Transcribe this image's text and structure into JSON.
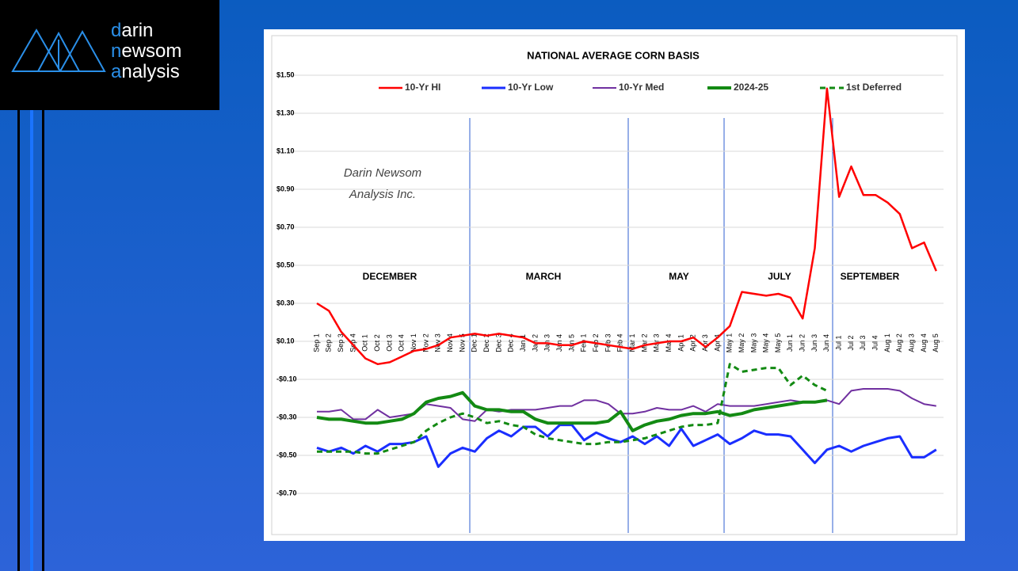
{
  "logo": [
    "darin",
    "newsom",
    "analysis"
  ],
  "chart_data": {
    "type": "line",
    "title": "NATIONAL AVERAGE CORN BASIS",
    "annotations": [
      "DECEMBER",
      "MARCH",
      "MAY",
      "JULY",
      "SEPTEMBER"
    ],
    "watermark": [
      "Darin Newsom",
      "Analysis Inc."
    ],
    "categories": [
      "Sep 1",
      "Sep 2",
      "Sep 3",
      "Sep 4",
      "Oct 1",
      "Oct 2",
      "Oct 3",
      "Oct 4",
      "Nov 1",
      "Nov 2",
      "Nov 3",
      "Nov 4",
      "Nov 5",
      "Dec 1",
      "Dec 2",
      "Dec 3",
      "Dec 4",
      "Jan 1",
      "Jan 2",
      "Jan 3",
      "Jan 4",
      "Jan 5",
      "Feb 1",
      "Feb 2",
      "Feb 3",
      "Feb 4",
      "Mar 1",
      "Mar 2",
      "Mar 3",
      "Mar 4",
      "Apr 1",
      "Apr 2",
      "Apr 3",
      "Apr 4",
      "May 1",
      "May 2",
      "May 3",
      "May 4",
      "May 5",
      "Jun 1",
      "Jun 2",
      "Jun 3",
      "Jun 4",
      "Jul 1",
      "Jul 2",
      "Jul 3",
      "Jul 4",
      "Aug 1",
      "Aug 2",
      "Aug 3",
      "Aug 4",
      "Aug 5"
    ],
    "ylim": [
      -0.9,
      1.5
    ],
    "yticks": [
      {
        "value": 1.5,
        "label": "$1.50"
      },
      {
        "value": 1.3,
        "label": "$1.30"
      },
      {
        "value": 1.1,
        "label": "$1.10"
      },
      {
        "value": 0.9,
        "label": "$0.90"
      },
      {
        "value": 0.7,
        "label": "$0.70"
      },
      {
        "value": 0.5,
        "label": "$0.50"
      },
      {
        "value": 0.3,
        "label": "$0.30"
      },
      {
        "value": 0.1,
        "label": "$0.10"
      },
      {
        "value": -0.1,
        "label": "-$0.10"
      },
      {
        "value": -0.3,
        "label": "-$0.30"
      },
      {
        "value": -0.5,
        "label": "-$0.50"
      },
      {
        "value": -0.7,
        "label": "-$0.70"
      }
    ],
    "grid": true,
    "series": [
      {
        "name": "10-Yr HI",
        "color": "#ff0000",
        "values": [
          0.3,
          0.26,
          0.15,
          0.08,
          0.01,
          -0.02,
          -0.01,
          0.02,
          0.05,
          0.06,
          0.08,
          0.12,
          0.13,
          0.14,
          0.13,
          0.14,
          0.13,
          0.12,
          0.09,
          0.09,
          0.08,
          0.08,
          0.1,
          0.09,
          0.08,
          0.07,
          0.06,
          0.08,
          0.09,
          0.1,
          0.1,
          0.12,
          0.07,
          0.12,
          0.18,
          0.36,
          0.35,
          0.34,
          0.35,
          0.33,
          0.22,
          0.59,
          1.43,
          0.86,
          1.02,
          0.87,
          0.87,
          0.83,
          0.77,
          0.59,
          0.62,
          0.47
        ]
      },
      {
        "name": "10-Yr Low",
        "color": "#1a2eff",
        "values": [
          -0.46,
          -0.48,
          -0.46,
          -0.49,
          -0.45,
          -0.48,
          -0.44,
          -0.44,
          -0.43,
          -0.4,
          -0.56,
          -0.49,
          -0.46,
          -0.48,
          -0.41,
          -0.37,
          -0.4,
          -0.35,
          -0.35,
          -0.4,
          -0.34,
          -0.34,
          -0.42,
          -0.38,
          -0.41,
          -0.43,
          -0.4,
          -0.44,
          -0.4,
          -0.45,
          -0.36,
          -0.45,
          -0.42,
          -0.39,
          -0.44,
          -0.41,
          -0.37,
          -0.39,
          -0.39,
          -0.4,
          -0.47,
          -0.54,
          -0.47,
          -0.45,
          -0.48,
          -0.45,
          -0.43,
          -0.41,
          -0.4,
          -0.51,
          -0.51,
          -0.47
        ]
      },
      {
        "name": "10-Yr Med",
        "color": "#7030a0",
        "values": [
          -0.27,
          -0.27,
          -0.26,
          -0.31,
          -0.31,
          -0.26,
          -0.3,
          -0.29,
          -0.28,
          -0.23,
          -0.24,
          -0.25,
          -0.31,
          -0.32,
          -0.26,
          -0.27,
          -0.26,
          -0.26,
          -0.26,
          -0.25,
          -0.24,
          -0.24,
          -0.21,
          -0.21,
          -0.23,
          -0.28,
          -0.28,
          -0.27,
          -0.25,
          -0.26,
          -0.26,
          -0.24,
          -0.27,
          -0.23,
          -0.24,
          -0.24,
          -0.24,
          -0.23,
          -0.22,
          -0.21,
          -0.22,
          -0.22,
          -0.21,
          -0.23,
          -0.16,
          -0.15,
          -0.15,
          -0.15,
          -0.16,
          -0.2,
          -0.23,
          -0.24
        ]
      },
      {
        "name": "2024-25",
        "color": "#138a13",
        "values": [
          -0.3,
          -0.31,
          -0.31,
          -0.32,
          -0.33,
          -0.33,
          -0.32,
          -0.31,
          -0.28,
          -0.22,
          -0.2,
          -0.19,
          -0.17,
          -0.24,
          -0.26,
          -0.26,
          -0.27,
          -0.27,
          -0.31,
          -0.33,
          -0.33,
          -0.33,
          -0.33,
          -0.33,
          -0.32,
          -0.27,
          -0.37,
          -0.34,
          -0.32,
          -0.31,
          -0.29,
          -0.28,
          -0.28,
          -0.27,
          -0.29,
          -0.28,
          -0.26,
          -0.25,
          -0.24,
          -0.23,
          -0.22,
          -0.22,
          -0.21,
          null,
          null,
          null,
          null,
          null,
          null,
          null,
          null,
          null
        ]
      },
      {
        "name": "1st Deferred",
        "color": "#138a13",
        "dashed": true,
        "values": [
          -0.48,
          -0.48,
          -0.48,
          -0.48,
          -0.49,
          -0.49,
          -0.47,
          -0.45,
          -0.43,
          -0.37,
          -0.33,
          -0.3,
          -0.28,
          -0.3,
          -0.33,
          -0.32,
          -0.34,
          -0.35,
          -0.39,
          -0.41,
          -0.42,
          -0.43,
          -0.44,
          -0.44,
          -0.43,
          -0.43,
          -0.42,
          -0.41,
          -0.39,
          -0.37,
          -0.35,
          -0.34,
          -0.34,
          -0.33,
          -0.02,
          -0.06,
          -0.05,
          -0.04,
          -0.04,
          -0.13,
          -0.08,
          -0.13,
          -0.16,
          null,
          null,
          null,
          null,
          null,
          null,
          null,
          null,
          null
        ]
      }
    ]
  }
}
